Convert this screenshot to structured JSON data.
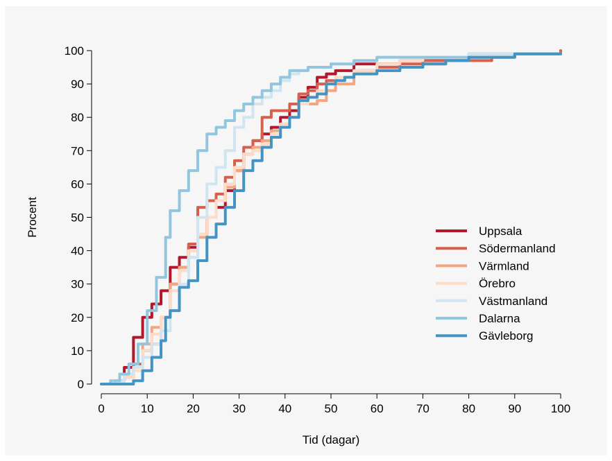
{
  "chart_data": {
    "type": "line",
    "xlabel": "Tid (dagar)",
    "ylabel": "Procent",
    "xlim": [
      0,
      100
    ],
    "ylim": [
      0,
      100
    ],
    "x_ticks": [
      0,
      10,
      20,
      30,
      40,
      50,
      60,
      70,
      80,
      90,
      100
    ],
    "y_ticks": [
      0,
      10,
      20,
      30,
      40,
      50,
      60,
      70,
      80,
      90,
      100
    ],
    "grid": false,
    "legend_position": "right",
    "series": [
      {
        "name": "Uppsala",
        "color": "#b2182b",
        "points": [
          [
            0,
            0
          ],
          [
            3,
            1
          ],
          [
            5,
            5
          ],
          [
            7,
            14
          ],
          [
            9,
            20
          ],
          [
            11,
            24
          ],
          [
            13,
            28
          ],
          [
            15,
            35
          ],
          [
            17,
            38
          ],
          [
            19,
            41
          ],
          [
            21,
            45
          ],
          [
            23,
            50
          ],
          [
            25,
            53
          ],
          [
            27,
            58
          ],
          [
            29,
            64
          ],
          [
            31,
            69
          ],
          [
            33,
            73
          ],
          [
            35,
            75
          ],
          [
            37,
            77
          ],
          [
            39,
            80
          ],
          [
            41,
            82
          ],
          [
            43,
            86
          ],
          [
            45,
            89
          ],
          [
            47,
            92
          ],
          [
            49,
            93
          ],
          [
            51,
            94
          ],
          [
            55,
            96
          ],
          [
            60,
            96
          ],
          [
            65,
            97
          ],
          [
            70,
            97
          ],
          [
            80,
            99
          ],
          [
            90,
            99
          ],
          [
            100,
            99
          ]
        ]
      },
      {
        "name": "Södermanland",
        "color": "#d6604d",
        "points": [
          [
            0,
            0
          ],
          [
            3,
            1
          ],
          [
            5,
            2
          ],
          [
            7,
            6
          ],
          [
            9,
            10
          ],
          [
            11,
            12
          ],
          [
            13,
            20
          ],
          [
            15,
            30
          ],
          [
            17,
            35
          ],
          [
            19,
            42
          ],
          [
            21,
            53
          ],
          [
            23,
            55
          ],
          [
            25,
            57
          ],
          [
            27,
            62
          ],
          [
            29,
            67
          ],
          [
            31,
            71
          ],
          [
            33,
            73
          ],
          [
            35,
            80
          ],
          [
            37,
            82
          ],
          [
            39,
            82
          ],
          [
            41,
            84
          ],
          [
            43,
            87
          ],
          [
            45,
            88
          ],
          [
            47,
            90
          ],
          [
            49,
            91
          ],
          [
            51,
            92
          ],
          [
            55,
            94
          ],
          [
            60,
            95
          ],
          [
            65,
            96
          ],
          [
            70,
            97
          ],
          [
            75,
            97
          ],
          [
            80,
            97
          ],
          [
            85,
            98
          ],
          [
            90,
            99
          ],
          [
            100,
            100
          ]
        ]
      },
      {
        "name": "Värmland",
        "color": "#f4a582",
        "points": [
          [
            0,
            0
          ],
          [
            3,
            1
          ],
          [
            5,
            2
          ],
          [
            7,
            5
          ],
          [
            9,
            12
          ],
          [
            11,
            17
          ],
          [
            13,
            20
          ],
          [
            15,
            30
          ],
          [
            17,
            35
          ],
          [
            19,
            38
          ],
          [
            21,
            44
          ],
          [
            23,
            50
          ],
          [
            25,
            55
          ],
          [
            27,
            59
          ],
          [
            29,
            64
          ],
          [
            31,
            69
          ],
          [
            33,
            71
          ],
          [
            35,
            73
          ],
          [
            37,
            76
          ],
          [
            39,
            78
          ],
          [
            41,
            80
          ],
          [
            43,
            84
          ],
          [
            45,
            84
          ],
          [
            47,
            85
          ],
          [
            49,
            88
          ],
          [
            51,
            90
          ],
          [
            55,
            93
          ],
          [
            60,
            94
          ],
          [
            65,
            95
          ],
          [
            70,
            96
          ],
          [
            75,
            97
          ],
          [
            80,
            98
          ],
          [
            85,
            98
          ],
          [
            90,
            99
          ],
          [
            100,
            99
          ]
        ]
      },
      {
        "name": "Örebro",
        "color": "#fddbc7",
        "points": [
          [
            0,
            0
          ],
          [
            3,
            1
          ],
          [
            5,
            2
          ],
          [
            7,
            4
          ],
          [
            9,
            10
          ],
          [
            11,
            15
          ],
          [
            13,
            20
          ],
          [
            15,
            28
          ],
          [
            17,
            34
          ],
          [
            19,
            40
          ],
          [
            21,
            45
          ],
          [
            23,
            50
          ],
          [
            25,
            55
          ],
          [
            27,
            60
          ],
          [
            29,
            65
          ],
          [
            31,
            69
          ],
          [
            33,
            70
          ],
          [
            35,
            72
          ],
          [
            37,
            75
          ],
          [
            39,
            78
          ],
          [
            41,
            80
          ],
          [
            43,
            84
          ],
          [
            45,
            86
          ],
          [
            47,
            88
          ],
          [
            49,
            90
          ],
          [
            51,
            92
          ],
          [
            55,
            94
          ],
          [
            60,
            96
          ],
          [
            65,
            97
          ],
          [
            70,
            98
          ],
          [
            80,
            99
          ],
          [
            90,
            99
          ],
          [
            100,
            99
          ]
        ]
      },
      {
        "name": "Västmanland",
        "color": "#d1e5f0",
        "points": [
          [
            0,
            0
          ],
          [
            3,
            1
          ],
          [
            5,
            3
          ],
          [
            7,
            5
          ],
          [
            9,
            8
          ],
          [
            11,
            12
          ],
          [
            13,
            16
          ],
          [
            15,
            22
          ],
          [
            17,
            30
          ],
          [
            19,
            38
          ],
          [
            21,
            50
          ],
          [
            23,
            60
          ],
          [
            25,
            65
          ],
          [
            27,
            70
          ],
          [
            29,
            77
          ],
          [
            31,
            80
          ],
          [
            33,
            84
          ],
          [
            35,
            86
          ],
          [
            37,
            88
          ],
          [
            39,
            91
          ],
          [
            41,
            93
          ],
          [
            43,
            94
          ],
          [
            45,
            95
          ],
          [
            50,
            96
          ],
          [
            55,
            97
          ],
          [
            60,
            98
          ],
          [
            70,
            98
          ],
          [
            80,
            99
          ],
          [
            90,
            99
          ],
          [
            100,
            99
          ]
        ]
      },
      {
        "name": "Dalarna",
        "color": "#92c5de",
        "points": [
          [
            0,
            0
          ],
          [
            2,
            1
          ],
          [
            4,
            3
          ],
          [
            6,
            6
          ],
          [
            8,
            12
          ],
          [
            10,
            22
          ],
          [
            12,
            32
          ],
          [
            14,
            44
          ],
          [
            15,
            52
          ],
          [
            17,
            58
          ],
          [
            19,
            64
          ],
          [
            21,
            70
          ],
          [
            23,
            75
          ],
          [
            25,
            77
          ],
          [
            27,
            79
          ],
          [
            29,
            82
          ],
          [
            31,
            84
          ],
          [
            33,
            86
          ],
          [
            35,
            88
          ],
          [
            37,
            90
          ],
          [
            39,
            92
          ],
          [
            41,
            94
          ],
          [
            43,
            94
          ],
          [
            45,
            95
          ],
          [
            50,
            96
          ],
          [
            55,
            97
          ],
          [
            60,
            98
          ],
          [
            70,
            98
          ],
          [
            80,
            98
          ],
          [
            90,
            99
          ],
          [
            100,
            99
          ]
        ]
      },
      {
        "name": "Gävleborg",
        "color": "#4393c3",
        "points": [
          [
            0,
            0
          ],
          [
            3,
            0
          ],
          [
            5,
            0
          ],
          [
            6,
            0
          ],
          [
            7,
            1
          ],
          [
            9,
            4
          ],
          [
            11,
            8
          ],
          [
            13,
            13
          ],
          [
            14,
            20
          ],
          [
            15,
            22
          ],
          [
            17,
            29
          ],
          [
            19,
            31
          ],
          [
            21,
            37
          ],
          [
            23,
            44
          ],
          [
            25,
            48
          ],
          [
            27,
            53
          ],
          [
            29,
            58
          ],
          [
            31,
            64
          ],
          [
            33,
            67
          ],
          [
            35,
            71
          ],
          [
            37,
            74
          ],
          [
            39,
            77
          ],
          [
            41,
            80
          ],
          [
            43,
            85
          ],
          [
            45,
            86
          ],
          [
            47,
            87
          ],
          [
            49,
            90
          ],
          [
            51,
            91
          ],
          [
            53,
            92
          ],
          [
            55,
            93
          ],
          [
            60,
            94
          ],
          [
            65,
            95
          ],
          [
            70,
            96
          ],
          [
            75,
            97
          ],
          [
            80,
            98
          ],
          [
            85,
            98
          ],
          [
            90,
            99
          ],
          [
            100,
            99
          ]
        ]
      }
    ]
  }
}
